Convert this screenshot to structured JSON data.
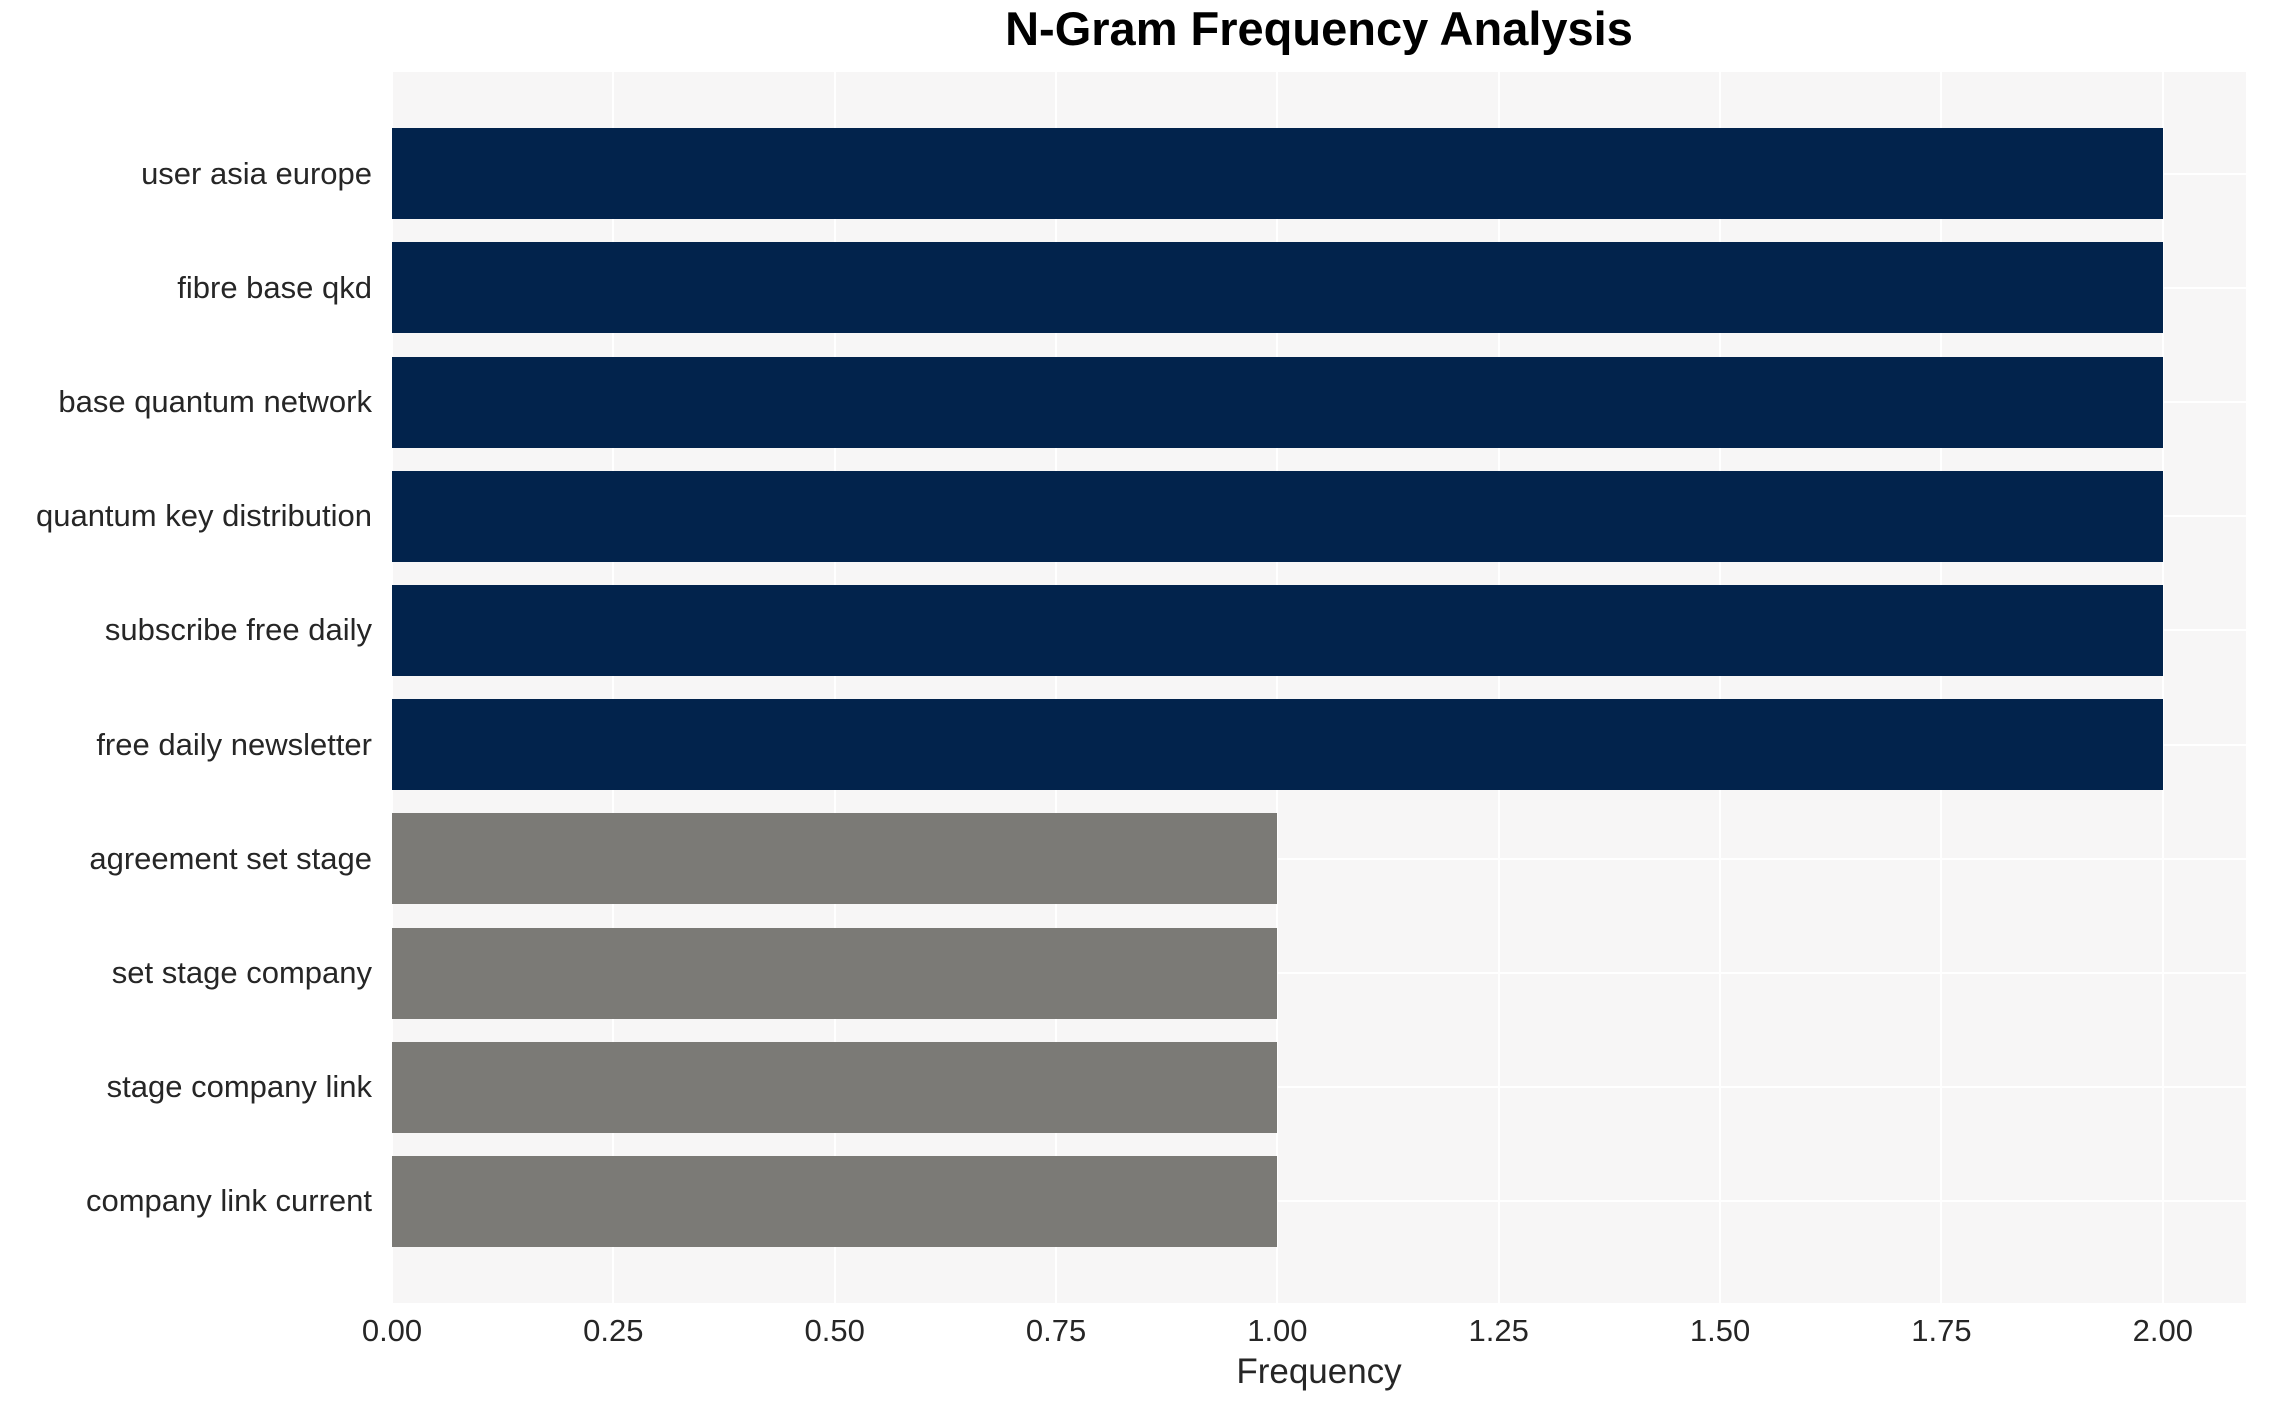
{
  "title": "N-Gram Frequency Analysis",
  "chart_data": {
    "type": "bar",
    "orientation": "horizontal",
    "title": "N-Gram Frequency Analysis",
    "xlabel": "Frequency",
    "ylabel": "",
    "categories": [
      "user asia europe",
      "fibre base qkd",
      "base quantum network",
      "quantum key distribution",
      "subscribe free daily",
      "free daily newsletter",
      "agreement set stage",
      "set stage company",
      "stage company link",
      "company link current"
    ],
    "values": [
      2,
      2,
      2,
      2,
      2,
      2,
      1,
      1,
      1,
      1
    ],
    "bar_colors": [
      "#02234c",
      "#02234c",
      "#02234c",
      "#02234c",
      "#02234c",
      "#02234c",
      "#7b7a76",
      "#7b7a76",
      "#7b7a76",
      "#7b7a76"
    ],
    "xlim": [
      0,
      2.094
    ],
    "xticks": [
      {
        "value": 0.0,
        "label": "0.00"
      },
      {
        "value": 0.25,
        "label": "0.25"
      },
      {
        "value": 0.5,
        "label": "0.50"
      },
      {
        "value": 0.75,
        "label": "0.75"
      },
      {
        "value": 1.0,
        "label": "1.00"
      },
      {
        "value": 1.25,
        "label": "1.25"
      },
      {
        "value": 1.5,
        "label": "1.50"
      },
      {
        "value": 1.75,
        "label": "1.75"
      },
      {
        "value": 2.0,
        "label": "2.00"
      }
    ],
    "grid": {
      "vertical": true,
      "horizontal": true,
      "color": "#ffffff",
      "behind_bars": true
    },
    "legend": null,
    "plot_background": "#f7f6f6"
  },
  "style": {
    "figure_background": "#ffffff",
    "text_color": "#262626",
    "title_color": "#000000"
  }
}
